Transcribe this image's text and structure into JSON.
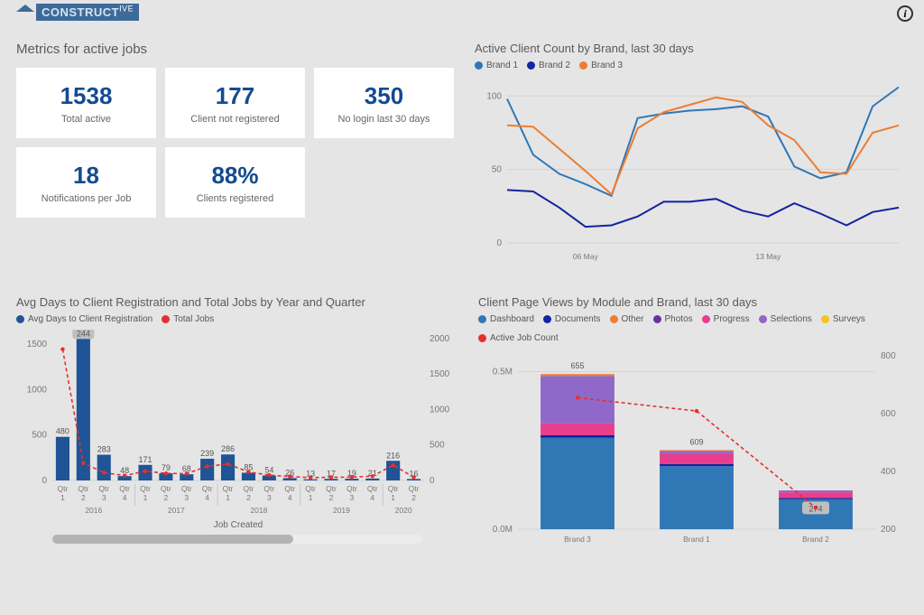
{
  "brand": {
    "name": "CONSTRUCT",
    "suffix": "IVE"
  },
  "metrics_title": "Metrics for active jobs",
  "metrics": [
    {
      "value": "1538",
      "label": "Total active"
    },
    {
      "value": "177",
      "label": "Client not registered"
    },
    {
      "value": "350",
      "label": "No login last 30 days"
    },
    {
      "value": "18",
      "label": "Notifications per Job"
    },
    {
      "value": "88%",
      "label": "Clients registered"
    }
  ],
  "active_clients": {
    "title": "Active Client Count by Brand, last 30 days",
    "type": "line",
    "legend": [
      {
        "label": "Brand 1",
        "color": "#2f77b5"
      },
      {
        "label": "Brand 2",
        "color": "#12249f"
      },
      {
        "label": "Brand 3",
        "color": "#ed7d31"
      }
    ],
    "ylim": [
      0,
      110
    ],
    "yticks": [
      0,
      50,
      100
    ],
    "xlabels": [
      "06 May",
      "13 May"
    ],
    "series": [
      {
        "color": "#2f77b5",
        "width": 2,
        "values": [
          98,
          60,
          47,
          40,
          32,
          85,
          88,
          90,
          91,
          93,
          86,
          52,
          44,
          48,
          93,
          106
        ]
      },
      {
        "color": "#ed7d31",
        "width": 2,
        "values": [
          80,
          79,
          64,
          49,
          33,
          78,
          89,
          94,
          99,
          96,
          80,
          70,
          48,
          47,
          75,
          80
        ]
      },
      {
        "color": "#12249f",
        "width": 2,
        "values": [
          36,
          35,
          24,
          11,
          12,
          18,
          28,
          28,
          30,
          22,
          18,
          27,
          20,
          12,
          21,
          24
        ]
      }
    ],
    "grid_color": "#d7d3cd"
  },
  "avg_days": {
    "title": "Avg Days to Client Registration and Total Jobs by Year and Quarter",
    "legend": [
      {
        "label": "Avg Days to Client Registration",
        "color": "#1f5496"
      },
      {
        "label": "Total Jobs",
        "color": "#e62f2f"
      }
    ],
    "x_axis_title": "Job Created",
    "left_ylim": [
      0,
      1600
    ],
    "left_yticks": [
      0,
      500,
      1000,
      1500
    ],
    "right_ylim": [
      0,
      2050
    ],
    "right_yticks": [
      0,
      500,
      1000,
      1500,
      2000
    ],
    "bar_color": "#1f5496",
    "line_color": "#e62f2f",
    "bars": [
      {
        "q": "Qtr 1",
        "y": "2016",
        "v": 480,
        "t": 1850
      },
      {
        "q": "Qtr 2",
        "y": "2016",
        "v": 1656,
        "t": 244,
        "boxed": true
      },
      {
        "q": "Qtr 3",
        "y": "2016",
        "v": 283,
        "t": 110
      },
      {
        "q": "Qtr 4",
        "y": "2016",
        "v": 48,
        "t": 69
      },
      {
        "q": "Qtr 1",
        "y": "2017",
        "v": 171,
        "t": 130
      },
      {
        "q": "Qtr 2",
        "y": "2017",
        "v": 79,
        "t": 100
      },
      {
        "q": "Qtr 3",
        "y": "2017",
        "v": 68,
        "t": 96
      },
      {
        "q": "Qtr 4",
        "y": "2017",
        "v": 239,
        "t": 200
      },
      {
        "q": "Qtr 1",
        "y": "2018",
        "v": 286,
        "t": 230
      },
      {
        "q": "Qtr 2",
        "y": "2018",
        "v": 85,
        "t": 120
      },
      {
        "q": "Qtr 3",
        "y": "2018",
        "v": 54,
        "t": 75
      },
      {
        "q": "Qtr 4",
        "y": "2018",
        "v": 26,
        "t": 55
      },
      {
        "q": "Qtr 1",
        "y": "2019",
        "v": 13,
        "t": 40
      },
      {
        "q": "Qtr 2",
        "y": "2019",
        "v": 17,
        "t": 45
      },
      {
        "q": "Qtr 3",
        "y": "2019",
        "v": 19,
        "t": 47
      },
      {
        "q": "Qtr 4",
        "y": "2019",
        "v": 21,
        "t": 60
      },
      {
        "q": "Qtr 1",
        "y": "2020",
        "v": 216,
        "t": 216
      },
      {
        "q": "Qtr 2",
        "y": "2020",
        "v": 16,
        "t": 45
      }
    ],
    "year_groups": [
      "2016",
      "2017",
      "2018",
      "2019",
      "2020"
    ],
    "scrollbar_pct": 65
  },
  "page_views": {
    "title": "Client Page Views by Module and Brand, last 30 days",
    "legend": [
      {
        "label": "Dashboard",
        "color": "#2f77b5"
      },
      {
        "label": "Documents",
        "color": "#12249f"
      },
      {
        "label": "Other",
        "color": "#ed7d31"
      },
      {
        "label": "Photos",
        "color": "#7030a0"
      },
      {
        "label": "Progress",
        "color": "#e83e8c"
      },
      {
        "label": "Selections",
        "color": "#9068c9"
      },
      {
        "label": "Surveys",
        "color": "#f5c518"
      },
      {
        "label": "Active Job Count",
        "color": "#e62f2f"
      }
    ],
    "left_ylim": [
      0,
      550000
    ],
    "left_yticks": [
      {
        "v": 0,
        "l": "0.0M"
      },
      {
        "v": 500000,
        "l": "0.5M"
      }
    ],
    "right_ylim": [
      200,
      800
    ],
    "right_yticks": [
      200,
      400,
      600,
      800
    ],
    "bars": [
      {
        "cat": "Brand 3",
        "count": 655,
        "segments": [
          {
            "c": "#2f77b5",
            "v": 290000
          },
          {
            "c": "#12249f",
            "v": 8000
          },
          {
            "c": "#e83e8c",
            "v": 38000
          },
          {
            "c": "#9068c9",
            "v": 150000
          },
          {
            "c": "#ed7d31",
            "v": 6000
          }
        ]
      },
      {
        "cat": "Brand 1",
        "count": 609,
        "segments": [
          {
            "c": "#2f77b5",
            "v": 200000
          },
          {
            "c": "#12249f",
            "v": 7000
          },
          {
            "c": "#e83e8c",
            "v": 32000
          },
          {
            "c": "#9068c9",
            "v": 9000
          },
          {
            "c": "#ed7d31",
            "v": 3000
          }
        ]
      },
      {
        "cat": "Brand 2",
        "count": 274,
        "boxed": true,
        "segments": [
          {
            "c": "#2f77b5",
            "v": 95000
          },
          {
            "c": "#12249f",
            "v": 4000
          },
          {
            "c": "#e83e8c",
            "v": 18000
          },
          {
            "c": "#9068c9",
            "v": 6000
          }
        ]
      }
    ],
    "line_color": "#e62f2f"
  }
}
